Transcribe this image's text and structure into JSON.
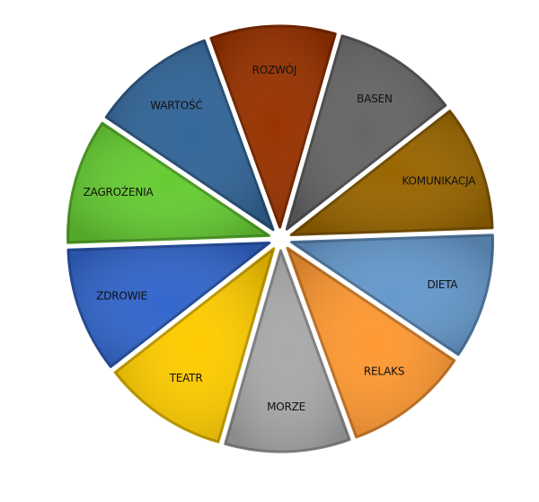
{
  "wheel": {
    "segments": [
      {
        "label": "ROZWÓJ",
        "color": "#993300"
      },
      {
        "label": "BASEN",
        "color": "#666666"
      },
      {
        "label": "KOMUNIKACJA",
        "color": "#996600"
      },
      {
        "label": "DIETA",
        "color": "#6699cc"
      },
      {
        "label": "RELAKS",
        "color": "#ff9933"
      },
      {
        "label": "MORZE",
        "color": "#aaaaaa"
      },
      {
        "label": "TEATR",
        "color": "#ffcc00"
      },
      {
        "label": "ZDROWIE",
        "color": "#3366cc"
      },
      {
        "label": "ZAGROŻENIA",
        "color": "#66cc33"
      },
      {
        "label": "WARTOŚĆ",
        "color": "#336699"
      }
    ]
  }
}
